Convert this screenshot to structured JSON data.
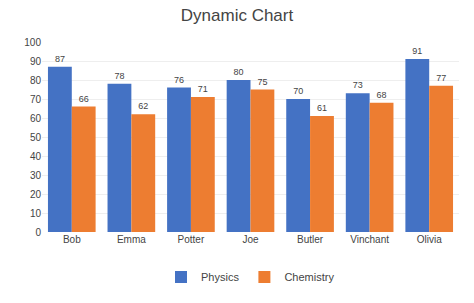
{
  "chart_data": {
    "type": "bar",
    "title": "Dynamic Chart",
    "categories": [
      "Bob",
      "Emma",
      "Potter",
      "Joe",
      "Butler",
      "Vinchant",
      "Olivia"
    ],
    "series": [
      {
        "name": "Physics",
        "color": "#4472C4",
        "values": [
          87,
          78,
          76,
          80,
          70,
          73,
          91
        ]
      },
      {
        "name": "Chemistry",
        "color": "#ED7D31",
        "values": [
          66,
          62,
          71,
          75,
          61,
          68,
          77
        ]
      }
    ],
    "ylim": [
      0,
      100
    ],
    "yticks": [
      0,
      10,
      20,
      30,
      40,
      50,
      60,
      70,
      80,
      90,
      100
    ],
    "grid": true,
    "legend": "bottom",
    "data_labels": true
  }
}
